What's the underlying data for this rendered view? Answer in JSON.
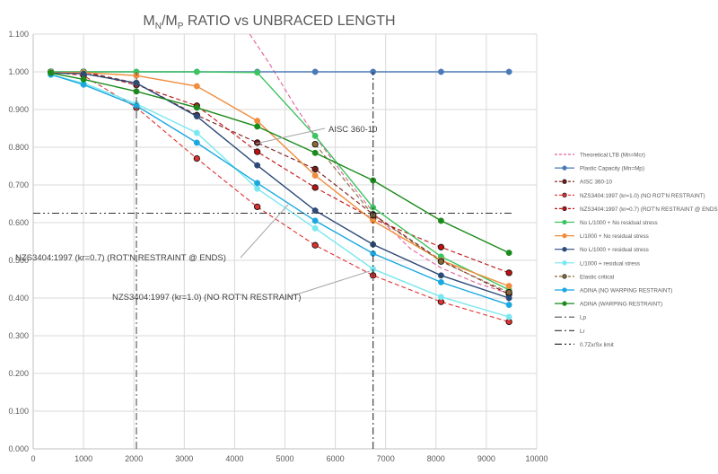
{
  "chart_data": {
    "type": "line",
    "title": "MN/MP RATIO vs UNBRACED LENGTH",
    "title_parts": {
      "m1": "M",
      "s1": "N",
      "sep": "/M",
      "s2": "P",
      "rest": " RATIO vs UNBRACED LENGTH"
    },
    "xlabel": "",
    "ylabel": "",
    "xlim": [
      0,
      10000
    ],
    "ylim": [
      0,
      1.1
    ],
    "x_ticks": [
      0,
      1000,
      2000,
      3000,
      4000,
      5000,
      6000,
      7000,
      8000,
      9000,
      10000
    ],
    "y_ticks": [
      "0.000",
      "0.100",
      "0.200",
      "0.300",
      "0.400",
      "0.500",
      "0.600",
      "0.700",
      "0.800",
      "0.900",
      "1.000",
      "1.100"
    ],
    "grid": "vertical and horizontal",
    "legend_position": "right",
    "series": [
      {
        "name": "Theoretical LTB (Mn=Mcr)",
        "color": "#e0609a",
        "dash": "dash",
        "marker": "none",
        "x": [
          4300,
          4700,
          5200,
          5700,
          6200,
          6800,
          7500,
          8100,
          8800,
          9500
        ],
        "y": [
          1.1,
          1.02,
          0.91,
          0.81,
          0.72,
          0.62,
          0.53,
          0.48,
          0.44,
          0.41
        ]
      },
      {
        "name": "Plastic Capacity (Mn=Mp)",
        "color": "#4a7ab8",
        "dash": "solid",
        "marker": "circle",
        "x": [
          350,
          1000,
          2050,
          3250,
          4450,
          5600,
          6750,
          8100,
          9450
        ],
        "y": [
          1.0,
          1.0,
          1.0,
          1.0,
          1.0,
          1.0,
          1.0,
          1.0,
          1.0
        ]
      },
      {
        "name": "AISC 360-10",
        "color": "#7a1a1a",
        "dash": "dash",
        "marker": "circle",
        "x": [
          350,
          1000,
          2050,
          3250,
          4450,
          5600,
          6750,
          8100,
          9450
        ],
        "y": [
          1.0,
          1.0,
          0.97,
          0.885,
          0.812,
          0.742,
          0.622,
          0.5,
          0.41
        ]
      },
      {
        "name": "NZS3404:1997 (kr=1.0) (NO ROT'N RESTRAINT)",
        "color": "#e03030",
        "dash": "dash",
        "marker": "circle",
        "x": [
          350,
          1000,
          2050,
          3250,
          4450,
          5600,
          6750,
          8100,
          9450
        ],
        "y": [
          1.0,
          0.99,
          0.905,
          0.77,
          0.642,
          0.54,
          0.46,
          0.39,
          0.337
        ]
      },
      {
        "name": "NZS3404:1997 (kr=0.7) (ROT'N RESTRAINT @ ENDS)",
        "color": "#c01010",
        "dash": "dash",
        "marker": "circle",
        "x": [
          350,
          1000,
          2050,
          3250,
          4450,
          5600,
          6750,
          8100,
          9450
        ],
        "y": [
          1.0,
          1.0,
          0.965,
          0.91,
          0.788,
          0.693,
          0.61,
          0.535,
          0.467
        ]
      },
      {
        "name": "No L/1000 + No residual stress",
        "color": "#3dc460",
        "dash": "solid",
        "marker": "circle",
        "x": [
          350,
          1000,
          2050,
          3250,
          4450,
          5600,
          6750,
          8100,
          9450
        ],
        "y": [
          1.0,
          1.0,
          1.0,
          1.0,
          0.998,
          0.83,
          0.64,
          0.51,
          0.422
        ]
      },
      {
        "name": "L/1000 + No residual stress",
        "color": "#f08c3c",
        "dash": "solid",
        "marker": "circle",
        "x": [
          350,
          1000,
          2050,
          3250,
          4450,
          5600,
          6750,
          8100,
          9450
        ],
        "y": [
          0.998,
          0.998,
          0.99,
          0.962,
          0.87,
          0.725,
          0.605,
          0.5,
          0.432
        ]
      },
      {
        "name": "No L/1000 + residual stress",
        "color": "#2c4a78",
        "dash": "solid",
        "marker": "circle",
        "x": [
          350,
          1000,
          2050,
          3250,
          4450,
          5600,
          6750,
          8100,
          9450
        ],
        "y": [
          0.997,
          0.995,
          0.97,
          0.882,
          0.752,
          0.632,
          0.542,
          0.46,
          0.4
        ]
      },
      {
        "name": "L/1000 + residual stress",
        "color": "#7ae8f0",
        "dash": "solid",
        "marker": "circle",
        "x": [
          350,
          1000,
          2050,
          3250,
          4450,
          5600,
          6750,
          8100,
          9450
        ],
        "y": [
          0.992,
          0.97,
          0.915,
          0.838,
          0.69,
          0.585,
          0.477,
          0.403,
          0.35
        ]
      },
      {
        "name": "Elastic critical",
        "color": "#8a6a3a",
        "dash": "dash",
        "marker": "circle",
        "x": [
          5600,
          6750,
          8100,
          9450
        ],
        "y": [
          0.808,
          0.62,
          0.497,
          0.415
        ]
      },
      {
        "name": "ADINA (NO WARPING RESTRAINT)",
        "color": "#1aa8e0",
        "dash": "solid",
        "marker": "circle",
        "x": [
          350,
          1000,
          2050,
          3250,
          4450,
          5600,
          6750,
          8100,
          9450
        ],
        "y": [
          0.993,
          0.966,
          0.91,
          0.812,
          0.705,
          0.605,
          0.518,
          0.442,
          0.382
        ]
      },
      {
        "name": "ADINA (WARPING RESTRAINT)",
        "color": "#1a8a1a",
        "dash": "solid",
        "marker": "circle",
        "x": [
          350,
          1000,
          2050,
          3250,
          4450,
          5600,
          6750,
          8100,
          9450
        ],
        "y": [
          0.997,
          0.98,
          0.948,
          0.905,
          0.855,
          0.785,
          0.712,
          0.605,
          0.52
        ]
      },
      {
        "name": "Lp",
        "color": "#505050",
        "dash": "dashdot",
        "marker": "none",
        "x": [
          2050,
          2050
        ],
        "y": [
          0,
          1.0
        ]
      },
      {
        "name": "Lr",
        "color": "#303030",
        "dash": "dashdot",
        "marker": "none",
        "x": [
          6750,
          6750
        ],
        "y": [
          0,
          1.0
        ]
      },
      {
        "name": "0.7Zx/Sx limit",
        "color": "#303030",
        "dash": "dashdotdot",
        "marker": "none",
        "x": [
          0,
          9500
        ],
        "y": [
          0.625,
          0.625
        ]
      }
    ],
    "annotations": [
      {
        "text": "AISC 360-10"
      },
      {
        "text": "NZS3404:1997 (kr=0.7) (ROT'N RESTRAINT @ ENDS)"
      },
      {
        "text": "NZS3404:1997 (kr=1.0) (NO ROT'N RESTRAINT)"
      }
    ]
  }
}
